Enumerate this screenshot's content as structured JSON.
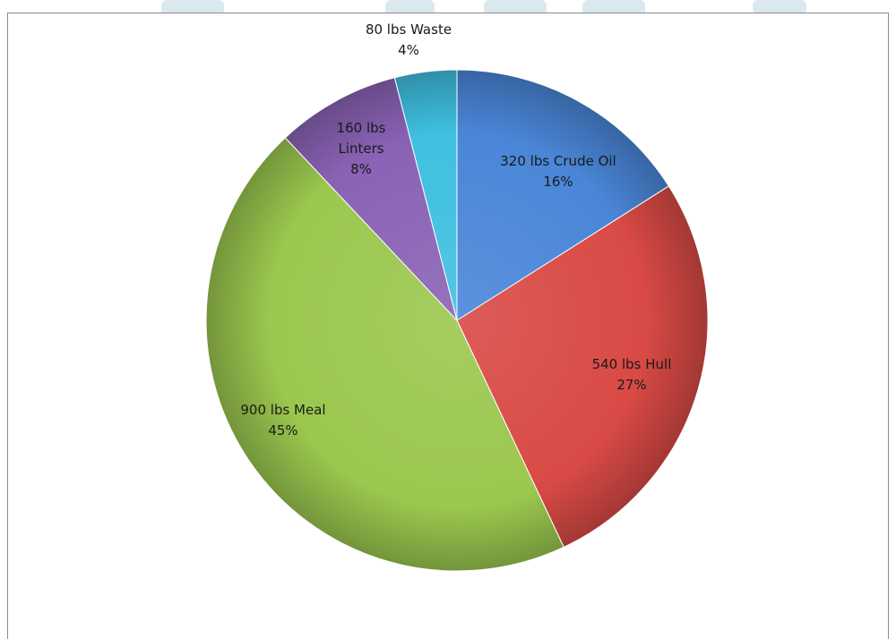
{
  "colors": {
    "crude_oil": "#4a86d8",
    "hull": "#d94a45",
    "meal": "#9bc74e",
    "linters": "#8a62b5",
    "waste": "#3fc0e0",
    "watermark": "#dbe9ef"
  },
  "chart_data": {
    "type": "pie",
    "start_angle_deg": 0,
    "direction": "clockwise",
    "slices": [
      {
        "key": "crude_oil",
        "line1": "320 lbs Crude Oil",
        "line2": "16%",
        "line3": "",
        "value": 320,
        "percent": 16
      },
      {
        "key": "hull",
        "line1": "540 lbs Hull",
        "line2": "27%",
        "line3": "",
        "value": 540,
        "percent": 27
      },
      {
        "key": "meal",
        "line1": "900 lbs Meal",
        "line2": "45%",
        "line3": "",
        "value": 900,
        "percent": 45
      },
      {
        "key": "linters",
        "line1": "160 lbs",
        "line2": "Linters",
        "line3": "8%",
        "value": 160,
        "percent": 8
      },
      {
        "key": "waste",
        "line1": "80 lbs Waste",
        "line2": "4%",
        "line3": "",
        "value": 80,
        "percent": 4
      }
    ]
  }
}
